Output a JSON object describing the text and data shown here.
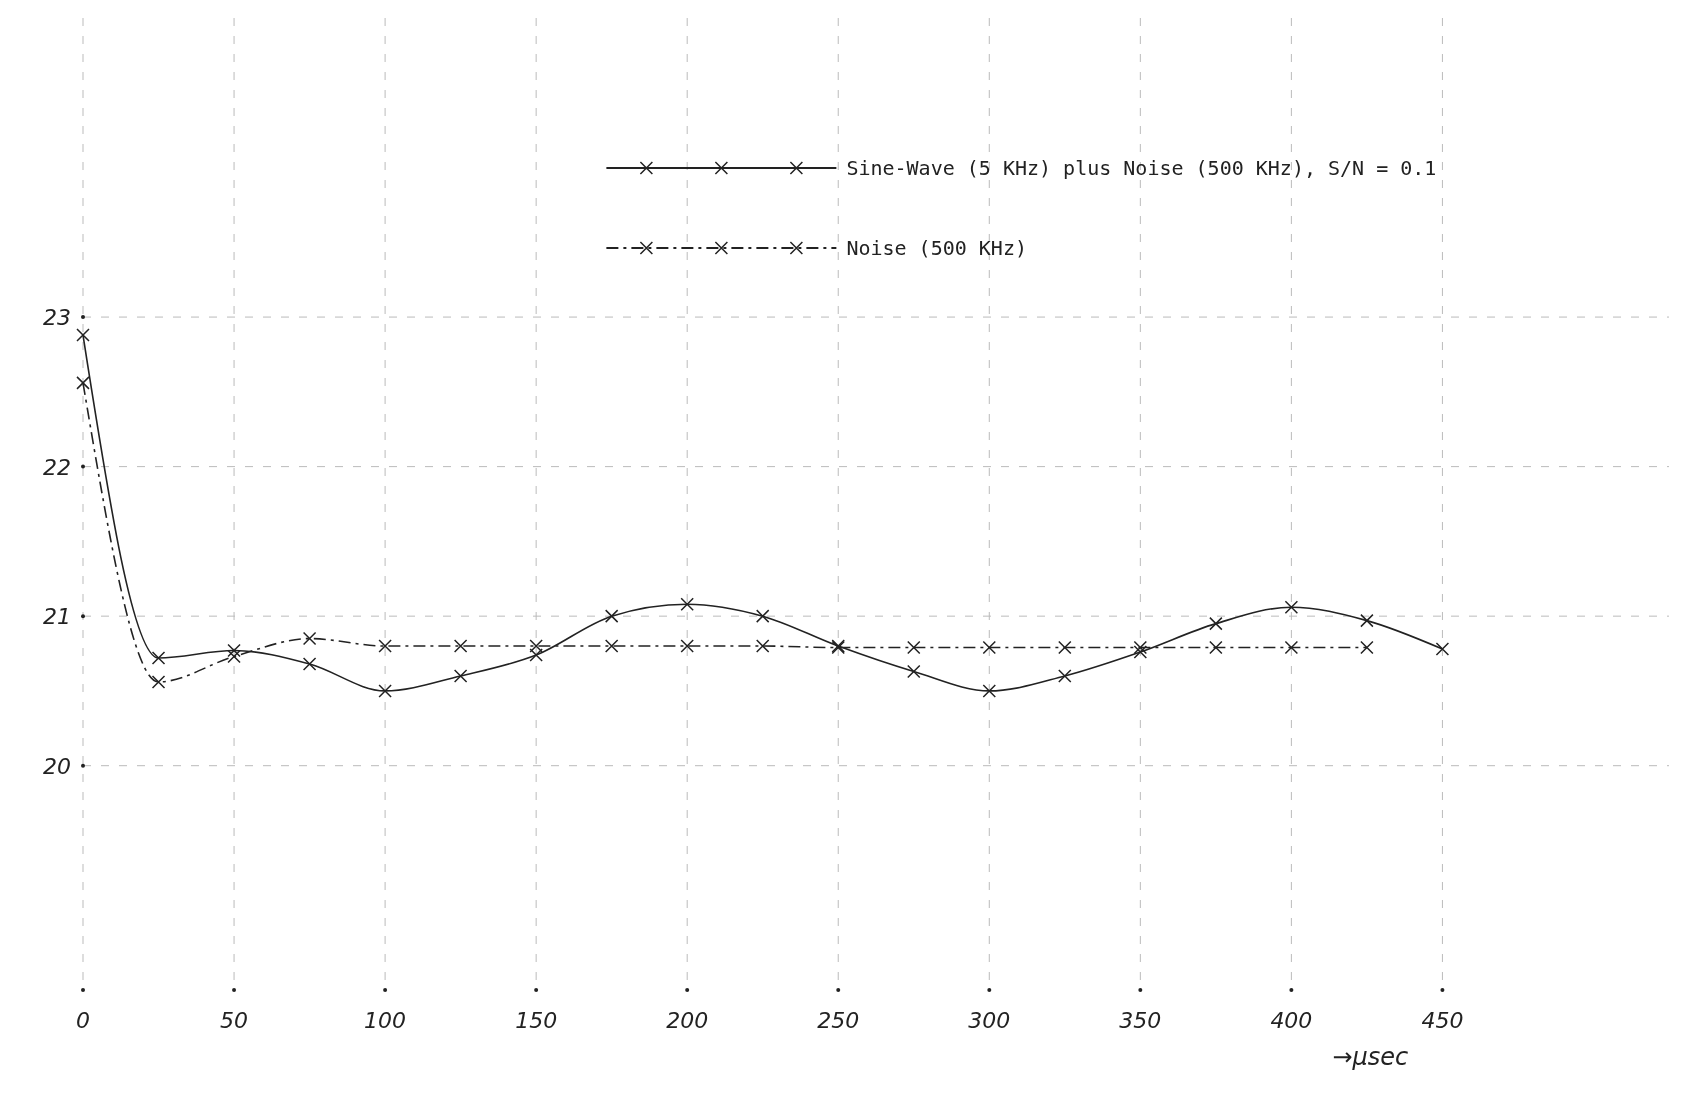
{
  "chart_data": {
    "type": "line",
    "xlabel": "→μsec",
    "xlim": [
      0,
      525
    ],
    "ylim": [
      18.5,
      25
    ],
    "xticks": [
      0,
      50,
      100,
      150,
      200,
      250,
      300,
      350,
      400,
      450
    ],
    "yticks": [
      20,
      21,
      22,
      23
    ],
    "grid": true,
    "legend": "top",
    "marker": "cross",
    "series": [
      {
        "name": "Sine-Wave (5 KHz) plus Noise (500 KHz), S/N = 0.1",
        "color": "#222222",
        "line_style": "solid",
        "x": [
          0,
          25,
          50,
          75,
          100,
          125,
          150,
          175,
          200,
          225,
          250,
          275,
          300,
          325,
          350,
          375,
          400,
          425,
          450
        ],
        "values": [
          22.88,
          20.72,
          20.77,
          20.68,
          20.5,
          20.6,
          20.74,
          21.0,
          21.08,
          21.0,
          20.8,
          20.63,
          20.5,
          20.6,
          20.76,
          20.95,
          21.06,
          20.97,
          20.78
        ]
      },
      {
        "name": "Noise (500 KHz)",
        "color": "#222222",
        "line_style": "dashed",
        "x": [
          0,
          25,
          50,
          75,
          100,
          125,
          150,
          175,
          200,
          225,
          250,
          275,
          300,
          325,
          350,
          375,
          400,
          425
        ],
        "values": [
          22.56,
          20.56,
          20.73,
          20.85,
          20.8,
          20.8,
          20.8,
          20.8,
          20.8,
          20.8,
          20.79,
          20.79,
          20.79,
          20.79,
          20.79,
          20.79,
          20.79,
          20.79
        ]
      }
    ]
  }
}
